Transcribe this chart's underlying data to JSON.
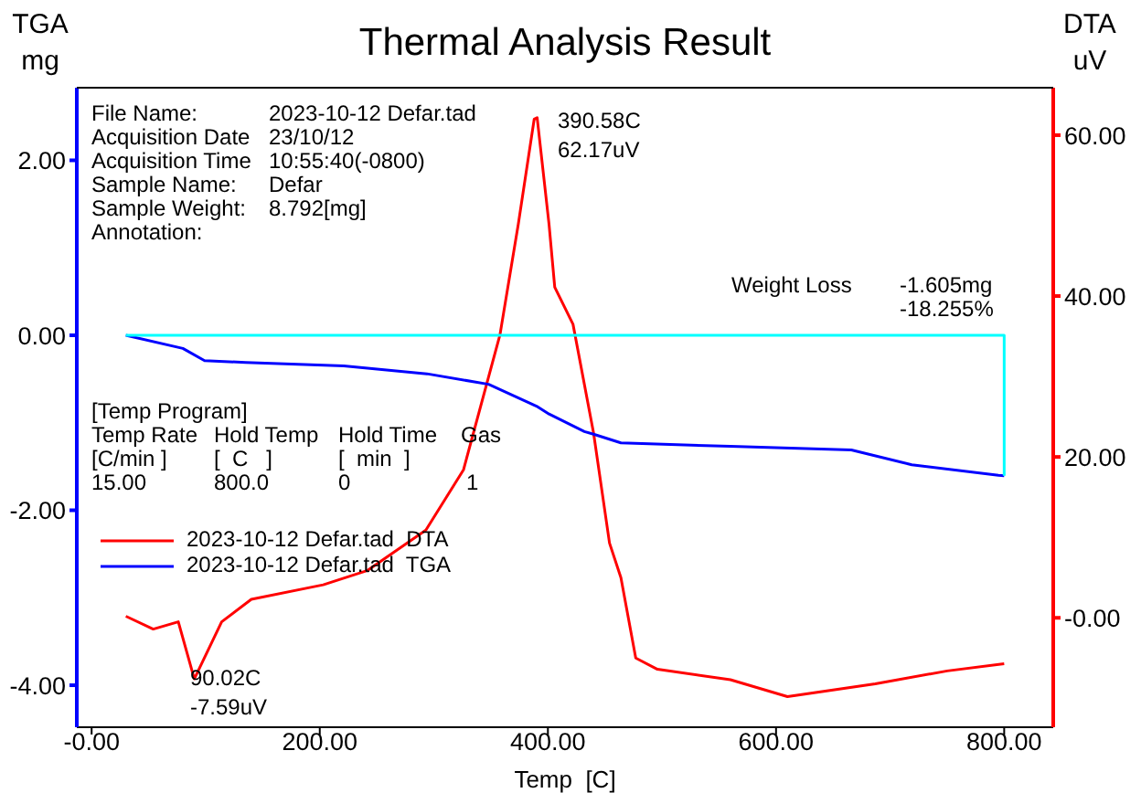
{
  "chart_data": {
    "type": "line",
    "title": "Thermal Analysis Result",
    "xlabel": "Temp  [C]",
    "ylabel": "TGA\nmg",
    "y2label": "DTA\nuV",
    "xlim": [
      -13,
      843
    ],
    "ylim": [
      -4.48,
      2.83
    ],
    "y2lim": [
      -13.6,
      65.9
    ],
    "xticks": [
      {
        "value": 0,
        "label": "-0.00"
      },
      {
        "value": 200,
        "label": "200.00"
      },
      {
        "value": 400,
        "label": "400.00"
      },
      {
        "value": 600,
        "label": "600.00"
      },
      {
        "value": 800,
        "label": "800.00"
      }
    ],
    "yticks": [
      {
        "value": -4,
        "label": "-4.00"
      },
      {
        "value": -2,
        "label": "-2.00"
      },
      {
        "value": 0,
        "label": "0.00"
      },
      {
        "value": 2,
        "label": "2.00"
      }
    ],
    "y2ticks": [
      {
        "value": 0,
        "label": "-0.00"
      },
      {
        "value": 20,
        "label": "20.00"
      },
      {
        "value": 40,
        "label": "40.00"
      },
      {
        "value": 60,
        "label": "60.00"
      }
    ],
    "grid": false,
    "legend": "bottom left",
    "marker": "none",
    "line_style": "solid",
    "series": [
      {
        "name": "2023-10-12 Defar.tad  DTA",
        "color": "#ff0000",
        "axis": "y2",
        "x": [
          30,
          54,
          76,
          90.02,
          114,
          140,
          203,
          242,
          293,
          326,
          358,
          374,
          388,
          390.58,
          401,
          406,
          422,
          440,
          454,
          464,
          477,
          496,
          560,
          610,
          687,
          750,
          800
        ],
        "values": [
          0.2,
          -1.4,
          -0.5,
          -7.59,
          -0.5,
          2.3,
          4.1,
          5.9,
          10.9,
          18.4,
          35.2,
          48.9,
          62,
          62.17,
          48.9,
          41.1,
          36.5,
          23,
          9.3,
          5,
          -5,
          -6.4,
          -7.7,
          -9.8,
          -8.2,
          -6.6,
          -5.7
        ]
      },
      {
        "name": "2023-10-12 Defar.tad  TGA",
        "color": "#0000ff",
        "x": [
          30,
          80,
          99,
          135,
          221,
          294,
          348,
          390,
          401,
          432,
          440,
          464,
          560,
          666,
          719,
          795,
          800
        ],
        "values": [
          0,
          -0.15,
          -0.29,
          -0.31,
          -0.35,
          -0.44,
          -0.56,
          -0.81,
          -0.9,
          -1.1,
          -1.13,
          -1.23,
          -1.27,
          -1.31,
          -1.48,
          -1.6,
          -1.605
        ]
      },
      {
        "color": "#00ffff",
        "x": [
          30,
          800,
          800
        ],
        "values": [
          0,
          0,
          -1.605
        ]
      }
    ],
    "annotations": [
      "File Name:",
      "2023-10-12 Defar.tad",
      "Acquisition Date",
      "23/10/12",
      "Acquisition Time",
      "10:55:40(-0800)",
      "Sample Name:",
      "Defar",
      "Sample Weight:",
      "8.792[mg]",
      "Annotation:",
      "[Temp Program]",
      "Temp Rate",
      "Hold Temp",
      "Hold Time",
      "Gas",
      "[C/min ]",
      "[  C   ]",
      "[  min  ]",
      "15.00",
      "800.0",
      "0",
      "1",
      "Weight Loss",
      "-1.605mg",
      "-18.255%",
      "390.58C\n62.17uV",
      "90.02C\n-7.59uV"
    ]
  }
}
